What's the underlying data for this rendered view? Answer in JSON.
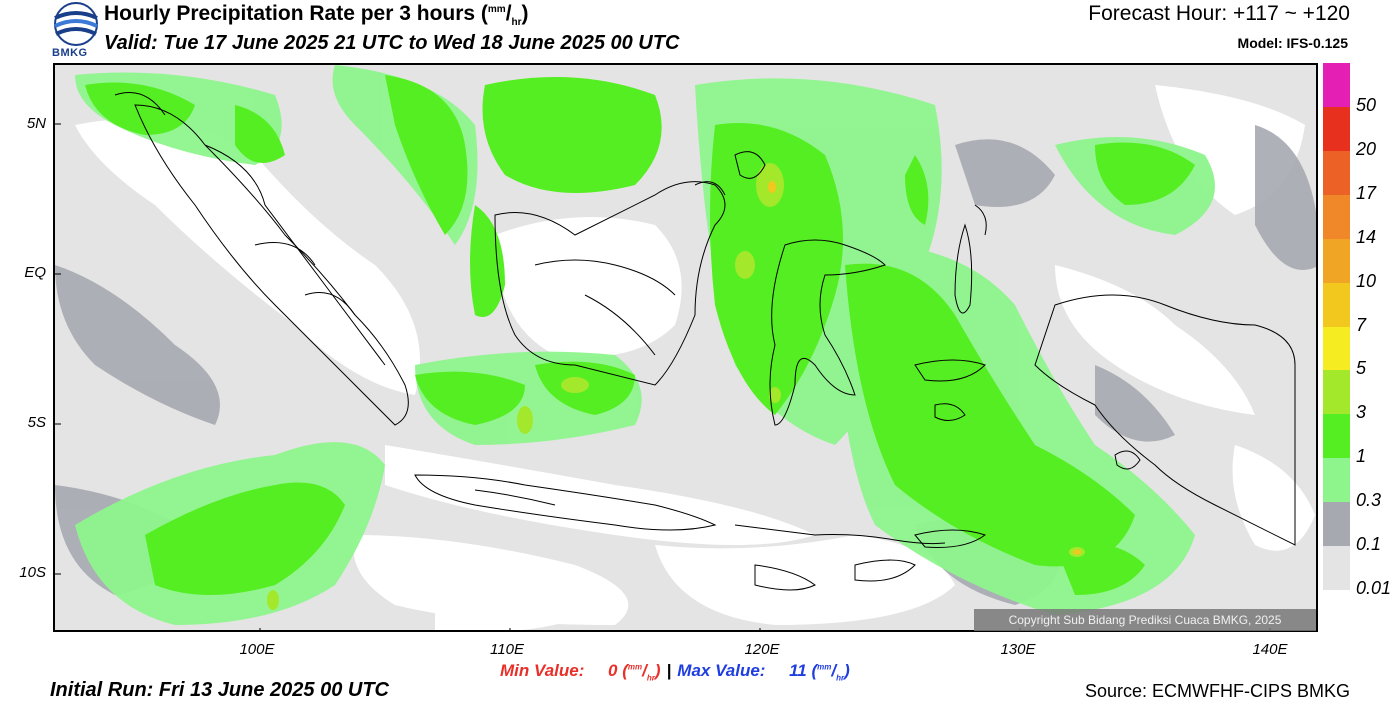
{
  "header": {
    "title_main": "Hourly Precipitation Rate per 3 hours (",
    "title_unit_top": "mm",
    "title_unit_sep": "/",
    "title_unit_bottom": "hr",
    "title_close": ")",
    "valid": "Valid: Tue 17 June 2025 21 UTC to Wed 18 June 2025 00 UTC",
    "forecast_hour": "Forecast Hour: +117 ~ +120",
    "model": "Model: IFS-0.125",
    "logo_text": "BMKG"
  },
  "axes": {
    "lat_labels": [
      "5N",
      "EQ",
      "5S",
      "10S"
    ],
    "lon_labels": [
      "100E",
      "110E",
      "120E",
      "130E",
      "140E"
    ]
  },
  "legend": {
    "labels": [
      "50",
      "20",
      "17",
      "14",
      "10",
      "7",
      "5",
      "3",
      "1",
      "0.3",
      "0.1",
      "0.01"
    ],
    "colors": [
      "#e31fb4",
      "#e8301f",
      "#ec6226",
      "#f0882a",
      "#f0a624",
      "#f3c81e",
      "#f5ec22",
      "#a3e82a",
      "#55ee22",
      "#8ef58c",
      "#a6a9b0",
      "#e4e4e4"
    ]
  },
  "copyright": "Copyright Sub Bidang Prediksi Cuaca BMKG, 2025",
  "footer": {
    "min_label": "Min Value:",
    "min_value": "0",
    "max_label": "Max Value:",
    "max_value": "11",
    "unit_top": "mm",
    "unit_bottom": "hr",
    "separator": "|",
    "initial_run": "Initial Run: Fri 13 June 2025 00 UTC",
    "source": "Source: ECMWFHF-CIPS BMKG"
  },
  "colors": {
    "no_rain": "#e4e4e4",
    "light_gray": "#a6a9b0",
    "pale_green": "#8ef58c",
    "green": "#55ee22",
    "yellow_green": "#a3e82a",
    "land": "#ffffff"
  }
}
